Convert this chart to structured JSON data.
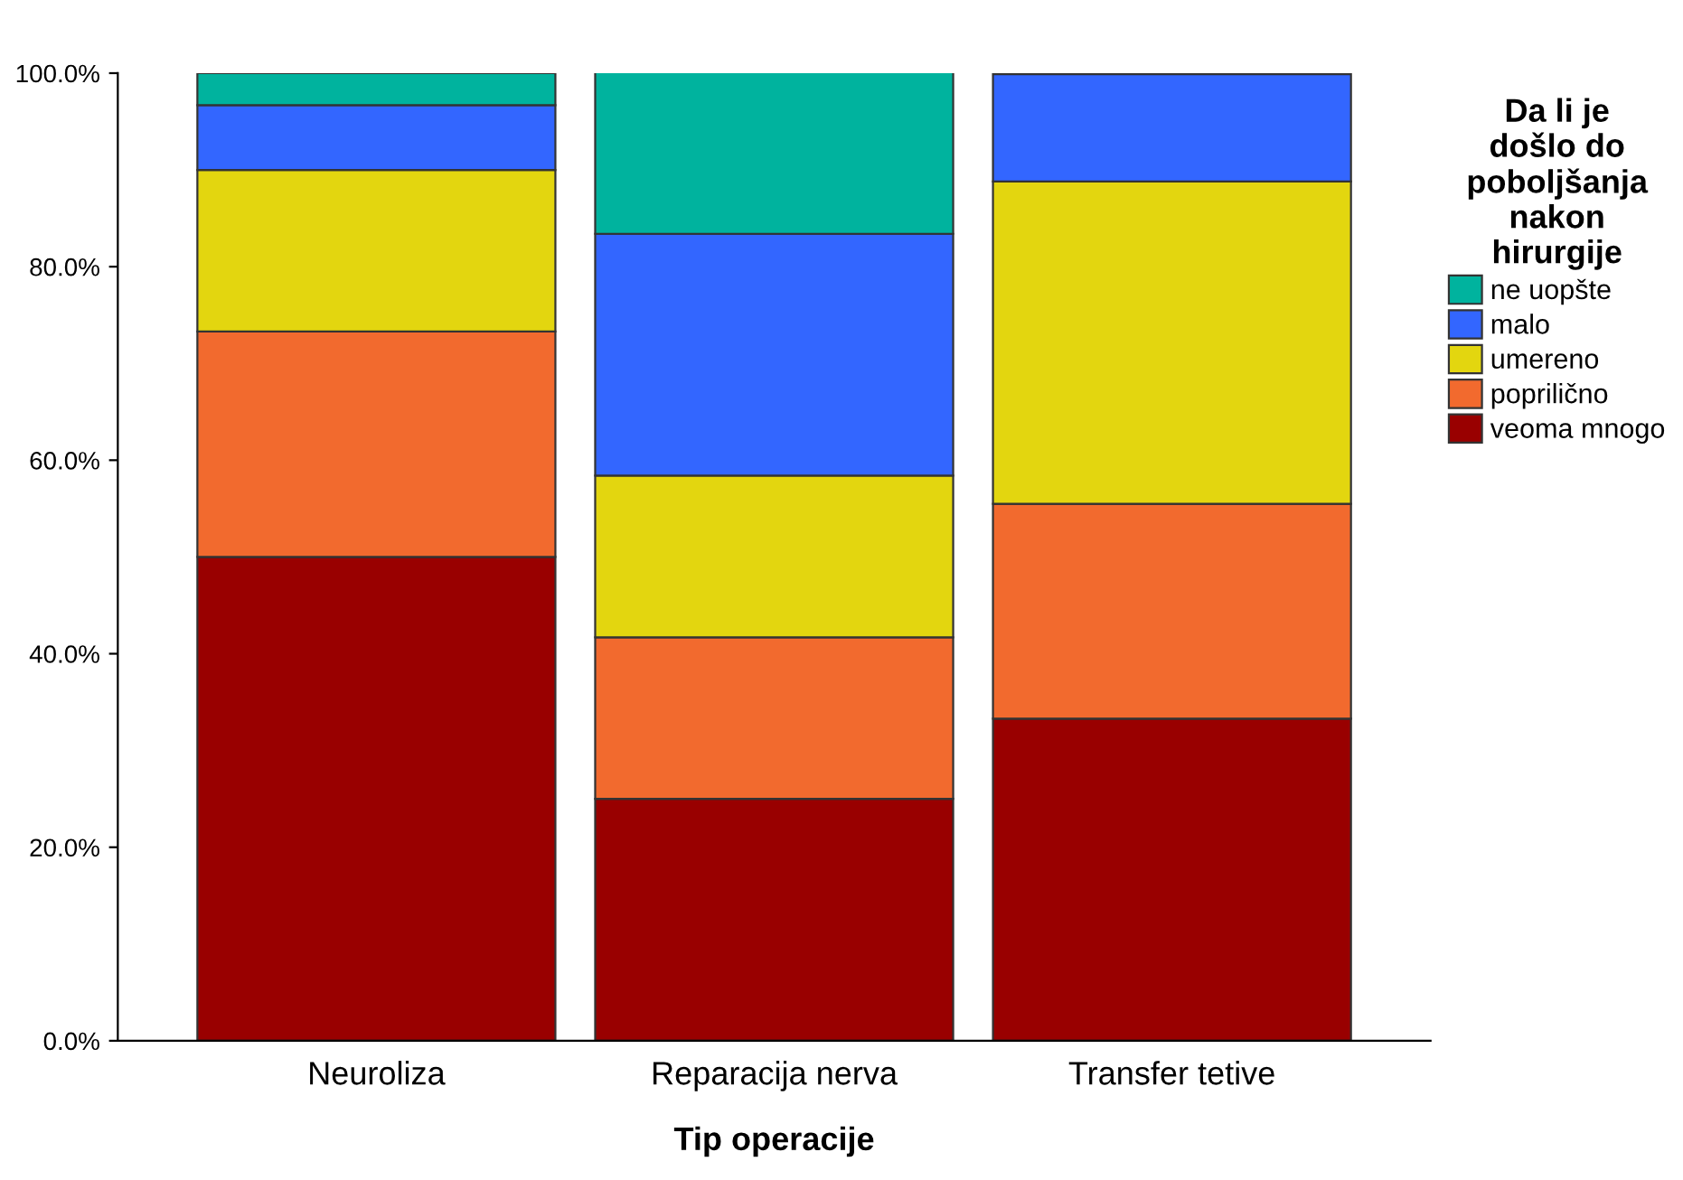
{
  "chart_data": {
    "type": "bar",
    "stacked": true,
    "xlabel": "Tip operacije",
    "legend_title": "Da li je\ndošlo do\npoboljšanja\nnakon\nhirurgije",
    "legend": "right",
    "grid": false,
    "categories": [
      "Neuroliza",
      "Reparacija nerva",
      "Transfer tetive"
    ],
    "ylim": [
      0,
      100
    ],
    "yticks": [
      {
        "value": 0,
        "label": "0.0%"
      },
      {
        "value": 20,
        "label": "20.0%"
      },
      {
        "value": 40,
        "label": "40.0%"
      },
      {
        "value": 60,
        "label": "60.0%"
      },
      {
        "value": 80,
        "label": "80.0%"
      },
      {
        "value": 100,
        "label": "100.0%"
      }
    ],
    "series": [
      {
        "name": "veoma mnogo",
        "color": "#990000",
        "values": [
          50.0,
          25.0,
          33.3
        ]
      },
      {
        "name": "poprilično",
        "color": "#f26a2e",
        "values": [
          23.3,
          16.7,
          22.2
        ]
      },
      {
        "name": "umereno",
        "color": "#e3d60f",
        "values": [
          16.7,
          16.7,
          33.3
        ]
      },
      {
        "name": "malo",
        "color": "#3366ff",
        "values": [
          6.7,
          25.0,
          11.1
        ]
      },
      {
        "name": "ne uopšte",
        "color": "#00b39e",
        "values": [
          3.3,
          16.7,
          0.0
        ]
      }
    ]
  }
}
